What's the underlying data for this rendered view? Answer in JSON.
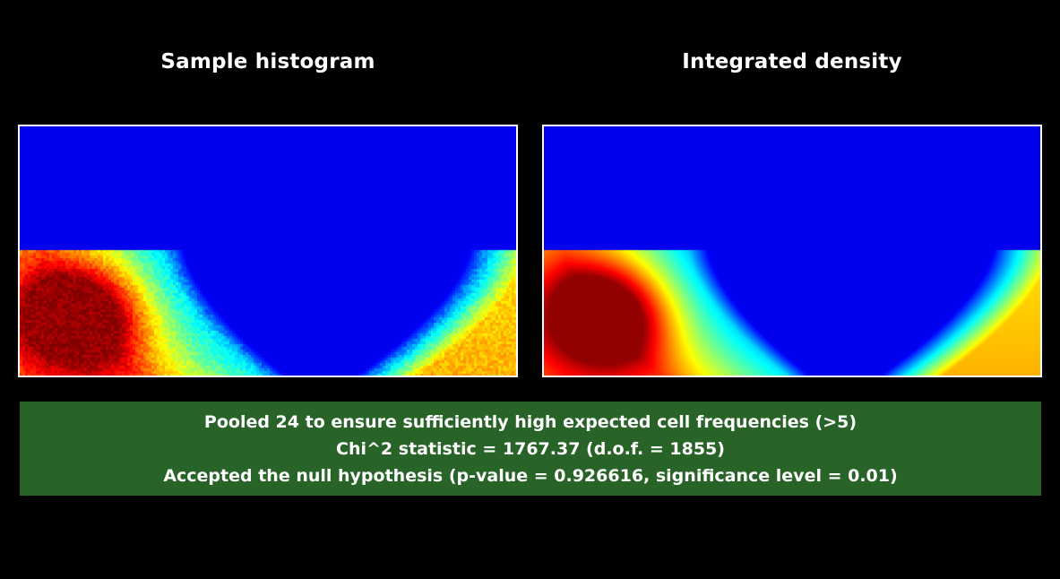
{
  "panels": {
    "left_title": "Sample histogram",
    "right_title": "Integrated density"
  },
  "result": {
    "line1": "Pooled 24 to ensure sufficiently high expected cell frequencies (>5)",
    "line2": "Chi^2 statistic = 1767.37 (d.o.f. = 1855)",
    "line3": "Accepted the null hypothesis (p-value = 0.926616, significance level = 0.01)",
    "panel_color": "#286428"
  },
  "chart_data": [
    {
      "type": "heatmap",
      "title": "Sample histogram",
      "colormap": "jet",
      "background": "#0000ff",
      "noisy": true
    },
    {
      "type": "heatmap",
      "title": "Integrated density",
      "colormap": "jet",
      "background": "#0000ff",
      "noisy": false
    }
  ]
}
